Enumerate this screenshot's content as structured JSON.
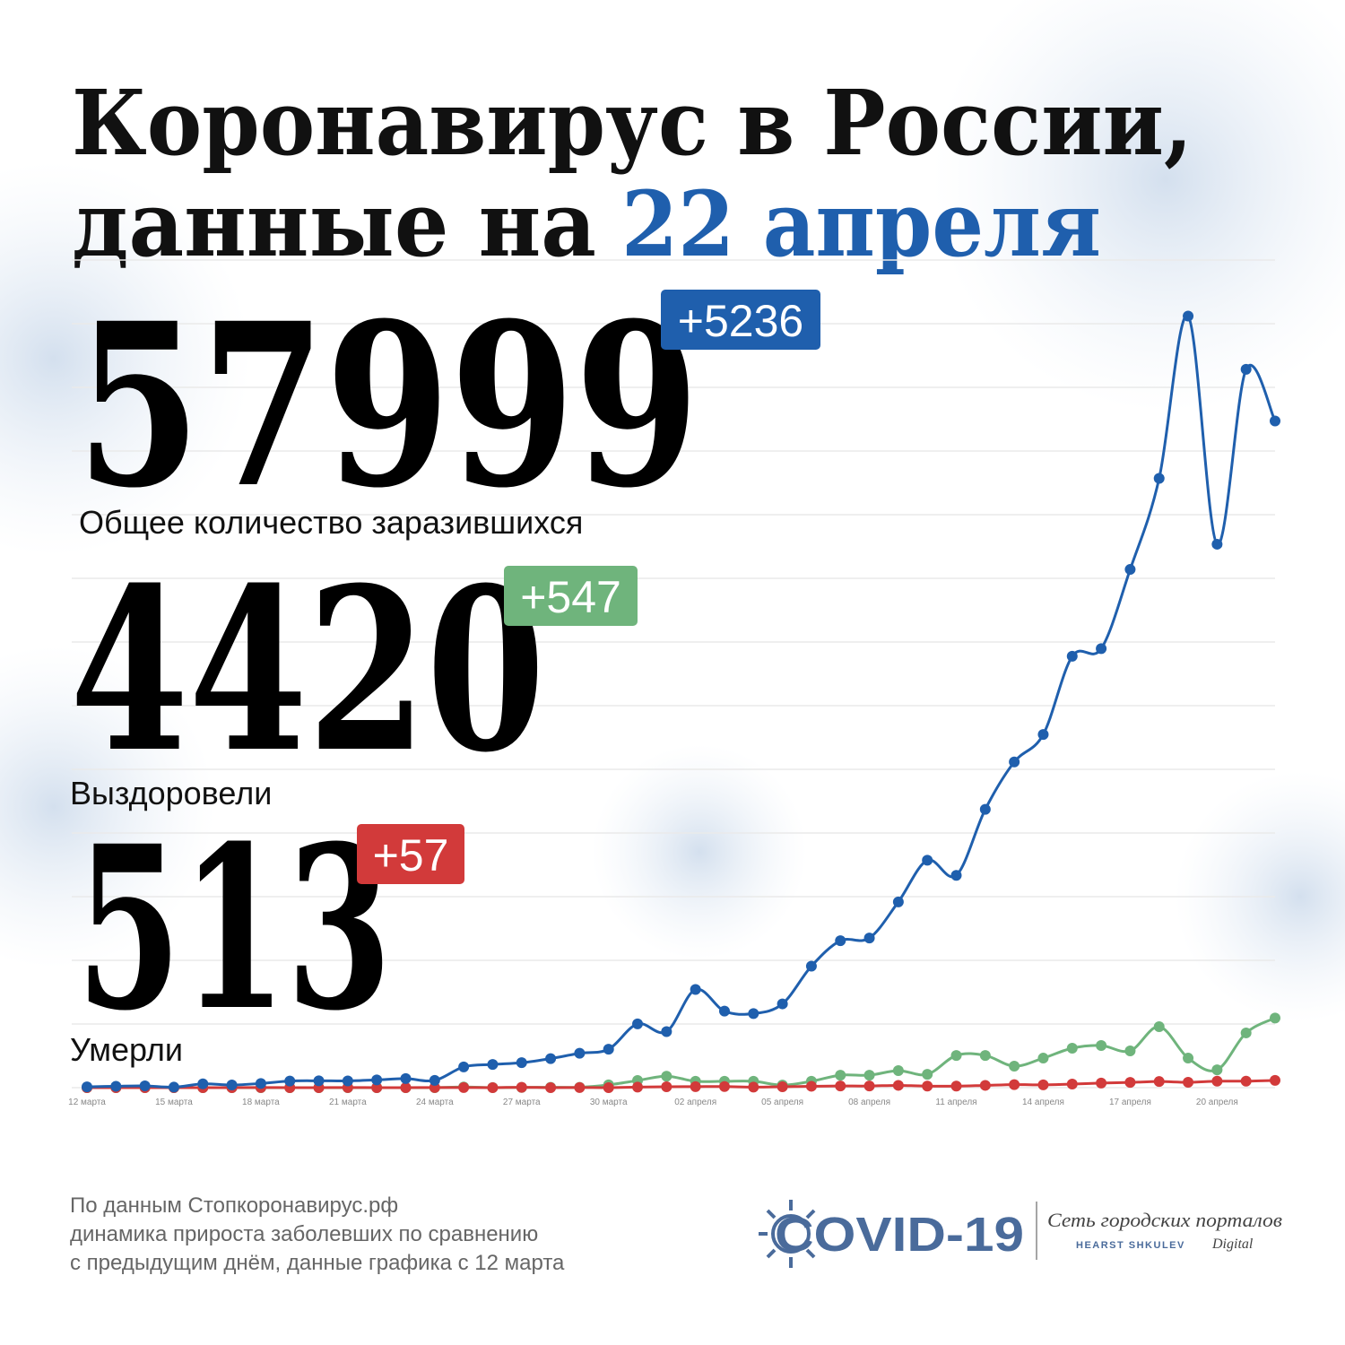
{
  "chart_data": {
    "type": "line",
    "title": [
      "Коронавирус в России,",
      "данные на",
      "22 апреля"
    ],
    "categories": [
      "12 марта",
      null,
      null,
      "15 марта",
      null,
      null,
      "18 марта",
      null,
      null,
      "21 марта",
      null,
      null,
      "24 марта",
      null,
      null,
      "27 марта",
      null,
      null,
      "30 марта",
      null,
      null,
      "02 апреля",
      null,
      null,
      "05 апреля",
      null,
      null,
      "08 апреля",
      null,
      null,
      "11 апреля",
      null,
      null,
      "14 апреля",
      null,
      null,
      "17 апреля",
      null,
      null,
      "20 апреля",
      null,
      null
    ],
    "series": [
      {
        "color": "#1f5fad",
        "values": [
          6,
          11,
          14,
          4,
          30,
          21,
          33,
          52,
          54,
          53,
          61,
          71,
          57,
          163,
          182,
          196,
          228,
          270,
          302,
          501,
          440,
          771,
          601,
          582,
          658,
          954,
          1154,
          1175,
          1459,
          1786,
          1667,
          2186,
          2558,
          2774,
          3388,
          3448,
          4070,
          4785,
          6060,
          4268,
          5642,
          5236
        ]
      },
      {
        "color": "#6fb47c",
        "values": [
          0,
          0,
          0,
          0,
          0,
          0,
          0,
          0,
          0,
          0,
          0,
          0,
          0,
          5,
          1,
          2,
          3,
          3,
          22,
          56,
          90,
          50,
          50,
          50,
          20,
          50,
          98,
          98,
          134,
          105,
          253,
          253,
          169,
          232,
          310,
          331,
          289,
          479,
          232,
          140,
          430,
          547
        ]
      },
      {
        "color": "#d23a3a",
        "values": [
          0,
          0,
          0,
          0,
          0,
          0,
          1,
          0,
          0,
          1,
          0,
          0,
          1,
          1,
          0,
          3,
          0,
          1,
          0,
          4,
          7,
          8,
          9,
          4,
          7,
          11,
          13,
          13,
          18,
          12,
          12,
          18,
          24,
          22,
          28,
          36,
          41,
          48,
          42,
          51,
          51,
          57
        ]
      }
    ],
    "ylim": [
      0,
      7000
    ],
    "grid": true
  },
  "stats": [
    {
      "value": 57999,
      "change": "+5236",
      "label": "Общее количество заразившихся",
      "color": "#1f5fad"
    },
    {
      "value": 4420,
      "change": "+547",
      "label": "Выздоровели",
      "color": "#6fb47c"
    },
    {
      "value": 513,
      "change": "+57",
      "label": "Умерли",
      "color": "#d23a3a"
    }
  ],
  "footer": [
    "По данным Стопкоронавирус.рф",
    "динамика прироста заболевших по сравнению",
    "с предыдущим днём, данные графика с 12 марта"
  ],
  "logo": {
    "name": "COVID-19",
    "network": "Сеть городских порталов",
    "brand": "HEARST SHKULEV",
    "brand_suffix": "Digital"
  }
}
